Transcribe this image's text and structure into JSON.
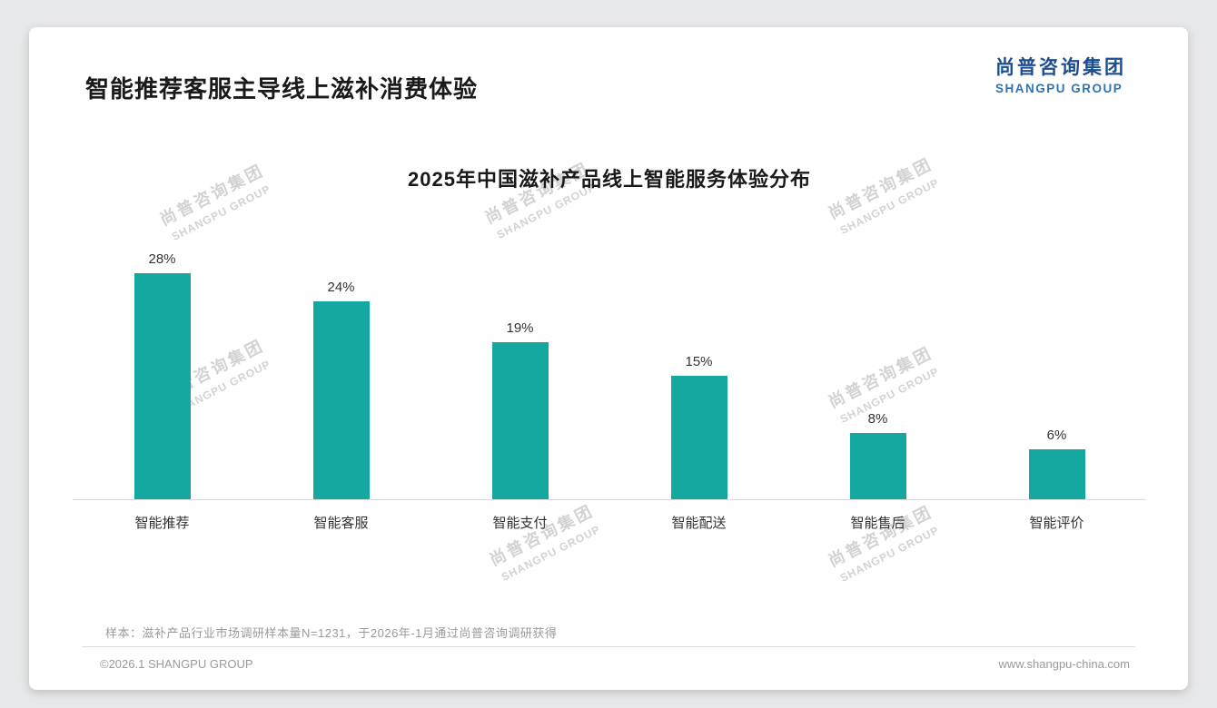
{
  "header": {
    "title": "智能推荐客服主导线上滋补消费体验",
    "logo_cn": "尚普咨询集团",
    "logo_en": "SHANGPU GROUP"
  },
  "chart_data": {
    "type": "bar",
    "title": "2025年中国滋补产品线上智能服务体验分布",
    "categories": [
      "智能推荐",
      "智能客服",
      "智能支付",
      "智能配送",
      "智能售后",
      "智能评价"
    ],
    "values": [
      28,
      24,
      19,
      15,
      8,
      6
    ],
    "data_labels": [
      "28%",
      "24%",
      "19%",
      "15%",
      "8%",
      "6%"
    ],
    "unit": "%",
    "ylim": [
      0,
      30
    ],
    "grid": false,
    "legend": "none",
    "bar_color": "#15a8a1"
  },
  "watermark": {
    "cn": "尚普咨询集团",
    "en": "SHANGPU GROUP"
  },
  "footnote": "样本：滋补产品行业市场调研样本量N=1231，于2026年-1月通过尚普咨询调研获得",
  "footer": {
    "left": "©2026.1 SHANGPU GROUP",
    "right": "www.shangpu-china.com"
  },
  "colors": {
    "accent_teal": "#15a8a1",
    "logo_blue_dark": "#1c4e8f",
    "logo_blue": "#2e74b5",
    "text_dark": "#1a1a1a",
    "text_gray": "#9a9a9a"
  }
}
